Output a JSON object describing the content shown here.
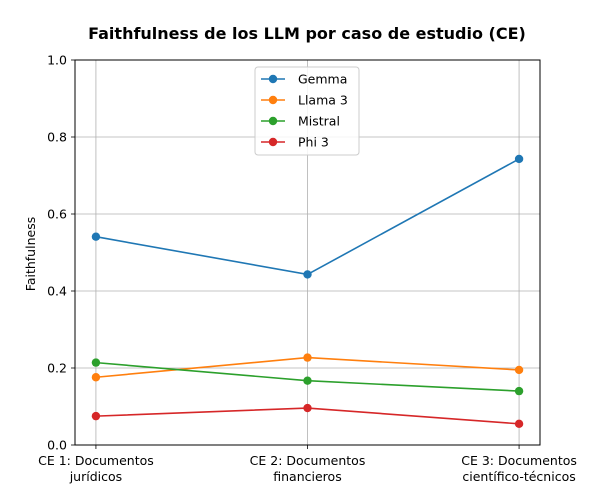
{
  "chart_data": {
    "type": "line",
    "title": "Faithfulness de los LLM por caso de estudio (CE)",
    "xlabel": "",
    "ylabel": "Faithfulness",
    "ylim": [
      0,
      1.0
    ],
    "yticks": [
      "0.0",
      "0.2",
      "0.4",
      "0.6",
      "0.8",
      "1.0"
    ],
    "grid": true,
    "legend_position": "top-center",
    "categories": [
      [
        "CE 1: Documentos",
        "jurídicos"
      ],
      [
        "CE 2: Documentos",
        "financieros"
      ],
      [
        "CE 3: Documentos",
        "científico-técnicos"
      ]
    ],
    "series": [
      {
        "name": "Gemma",
        "color": "#1f77b4",
        "values": [
          0.541,
          0.443,
          0.743
        ]
      },
      {
        "name": "Llama 3",
        "color": "#ff7f0e",
        "values": [
          0.176,
          0.227,
          0.195
        ]
      },
      {
        "name": "Mistral",
        "color": "#2ca02c",
        "values": [
          0.214,
          0.167,
          0.14
        ]
      },
      {
        "name": "Phi 3",
        "color": "#d62728",
        "values": [
          0.075,
          0.096,
          0.055
        ]
      }
    ]
  }
}
